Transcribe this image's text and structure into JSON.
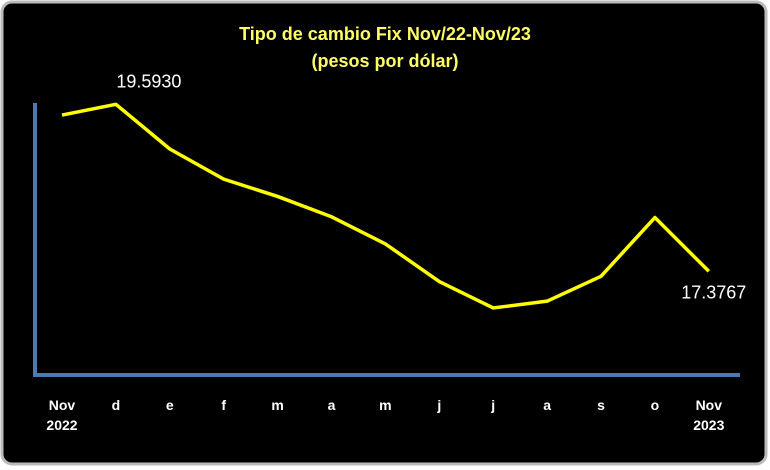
{
  "chart_data": {
    "type": "line",
    "title": "Tipo de cambio Fix Nov/22-Nov/23",
    "subtitle": "(pesos por dólar)",
    "categories": [
      "Nov\n2022",
      "d",
      "e",
      "f",
      "m",
      "a",
      "m",
      "j",
      "j",
      "a",
      "s",
      "o",
      "Nov\n2023"
    ],
    "series": [
      {
        "color": "#ffff00",
        "values": [
          19.45,
          19.593,
          19.0,
          18.6,
          18.37,
          18.1,
          17.74,
          17.24,
          16.89,
          16.98,
          17.31,
          18.09,
          17.3767
        ],
        "value_labels": [
          "",
          "19.5930",
          null,
          null,
          null,
          null,
          null,
          null,
          null,
          null,
          null,
          null,
          "17.3767"
        ]
      }
    ],
    "ylim": [
      16.0,
      19.65
    ],
    "grid": false
  }
}
